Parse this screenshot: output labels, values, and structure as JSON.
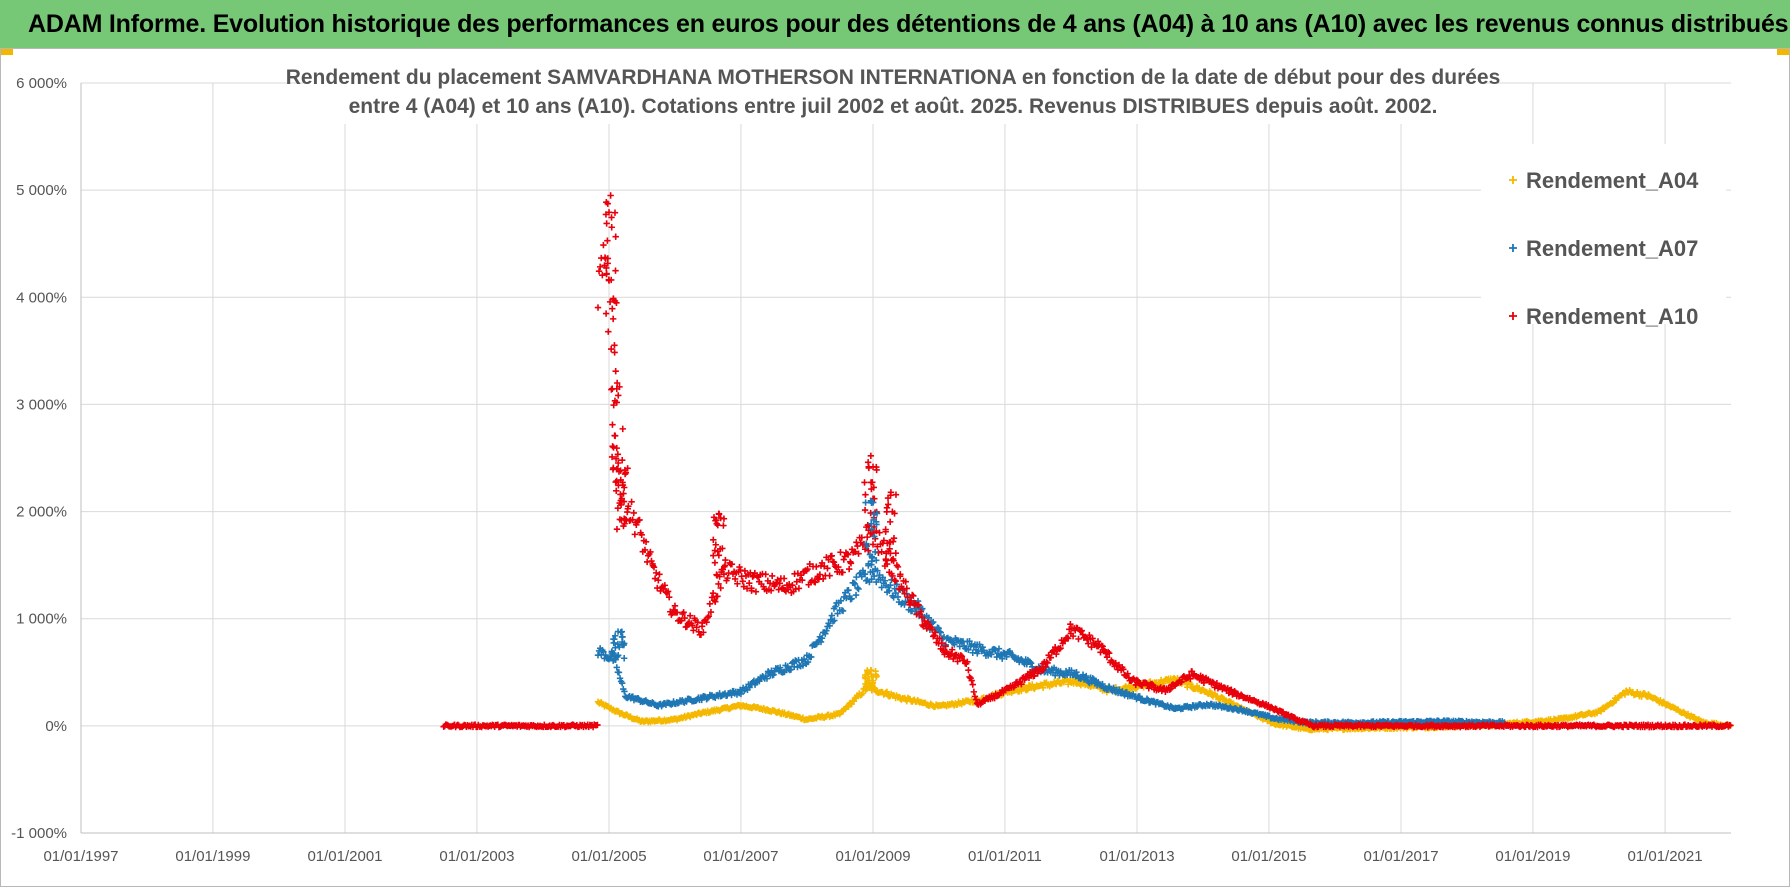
{
  "banner": {
    "title": "ADAM Informe. Evolution historique des performances en euros pour des détentions de 4 ans (A04) à 10 ans (A10) avec les revenus connus distribués"
  },
  "chart_data": {
    "type": "scatter",
    "title_lines": [
      "Rendement du placement SAMVARDHANA MOTHERSON INTERNATIONA en fonction de la date de début pour des durées",
      "entre 4 (A04) et 10 ans (A10). Cotations entre juil 2002 et août. 2025. Revenus DISTRIBUES depuis août. 2002."
    ],
    "xlabel": "",
    "ylabel": "",
    "x_ticks": [
      "01/01/1997",
      "01/01/1999",
      "01/01/2001",
      "01/01/2003",
      "01/01/2005",
      "01/01/2007",
      "01/01/2009",
      "01/01/2011",
      "01/01/2013",
      "01/01/2015",
      "01/01/2017",
      "01/01/2019",
      "01/01/2021"
    ],
    "xlim": [
      "1997-01-01",
      "2022-01-01"
    ],
    "y_ticks": [
      "-1 000%",
      "0%",
      "1 000%",
      "2 000%",
      "3 000%",
      "4 000%",
      "5 000%",
      "6 000%"
    ],
    "ylim": [
      -1000,
      6000
    ],
    "grid": true,
    "legend_position": "top-right",
    "series": [
      {
        "name": "Rendement_A04",
        "color": "#f5b800",
        "points": [
          [
            "2004-11-01",
            220
          ],
          [
            "2005-03-01",
            120
          ],
          [
            "2005-07-01",
            40
          ],
          [
            "2006-01-01",
            60
          ],
          [
            "2006-06-01",
            120
          ],
          [
            "2007-01-01",
            190
          ],
          [
            "2007-06-01",
            150
          ],
          [
            "2008-01-01",
            60
          ],
          [
            "2008-07-01",
            110
          ],
          [
            "2008-12-01",
            360
          ],
          [
            "2009-06-01",
            260
          ],
          [
            "2010-01-01",
            180
          ],
          [
            "2010-08-01",
            240
          ],
          [
            "2011-02-01",
            330
          ],
          [
            "2011-08-01",
            380
          ],
          [
            "2012-02-01",
            420
          ],
          [
            "2012-08-01",
            330
          ],
          [
            "2013-02-01",
            380
          ],
          [
            "2013-08-01",
            430
          ],
          [
            "2014-02-01",
            310
          ],
          [
            "2014-08-01",
            160
          ],
          [
            "2015-02-01",
            20
          ],
          [
            "2015-08-01",
            -30
          ],
          [
            "2016-06-01",
            -20
          ],
          [
            "2017-06-01",
            -10
          ],
          [
            "2018-06-01",
            10
          ],
          [
            "2019-06-01",
            60
          ],
          [
            "2020-01-01",
            130
          ],
          [
            "2020-06-01",
            320
          ],
          [
            "2020-10-01",
            280
          ],
          [
            "2021-02-01",
            180
          ],
          [
            "2021-08-01",
            30
          ],
          [
            "2022-01-01",
            0
          ]
        ]
      },
      {
        "name": "Rendement_A07",
        "color": "#1f77b4",
        "points": [
          [
            "2004-11-01",
            700
          ],
          [
            "2005-02-01",
            620
          ],
          [
            "2005-04-01",
            280
          ],
          [
            "2005-10-01",
            190
          ],
          [
            "2006-06-01",
            260
          ],
          [
            "2007-01-01",
            320
          ],
          [
            "2007-06-01",
            480
          ],
          [
            "2008-01-01",
            620
          ],
          [
            "2008-06-01",
            1050
          ],
          [
            "2008-10-01",
            1300
          ],
          [
            "2009-01-01",
            1450
          ],
          [
            "2009-05-01",
            1250
          ],
          [
            "2009-09-01",
            1100
          ],
          [
            "2010-02-01",
            800
          ],
          [
            "2010-08-01",
            720
          ],
          [
            "2011-02-01",
            650
          ],
          [
            "2011-08-01",
            520
          ],
          [
            "2012-02-01",
            480
          ],
          [
            "2012-08-01",
            350
          ],
          [
            "2013-02-01",
            250
          ],
          [
            "2013-08-01",
            160
          ],
          [
            "2014-02-01",
            200
          ],
          [
            "2014-08-01",
            150
          ],
          [
            "2015-02-01",
            70
          ],
          [
            "2015-08-01",
            30
          ],
          [
            "2016-08-01",
            30
          ],
          [
            "2017-08-01",
            40
          ],
          [
            "2018-08-01",
            30
          ]
        ]
      },
      {
        "name": "Rendement_A10",
        "color": "#e8000b",
        "points": [
          [
            "2002-07-01",
            0
          ],
          [
            "2003-06-01",
            0
          ],
          [
            "2004-10-31",
            0
          ],
          [
            "2004-11-01",
            4100
          ],
          [
            "2005-01-01",
            4300
          ],
          [
            "2005-02-01",
            3700
          ],
          [
            "2005-03-01",
            2150
          ],
          [
            "2005-06-01",
            1900
          ],
          [
            "2005-09-01",
            1450
          ],
          [
            "2006-01-01",
            1050
          ],
          [
            "2006-06-01",
            900
          ],
          [
            "2006-10-01",
            1450
          ],
          [
            "2007-03-01",
            1350
          ],
          [
            "2007-09-01",
            1300
          ],
          [
            "2008-03-01",
            1450
          ],
          [
            "2008-09-01",
            1550
          ],
          [
            "2009-01-01",
            1800
          ],
          [
            "2009-06-01",
            1350
          ],
          [
            "2009-10-01",
            1000
          ],
          [
            "2010-02-01",
            700
          ],
          [
            "2010-06-01",
            600
          ],
          [
            "2010-08-01",
            200
          ],
          [
            "2011-02-01",
            350
          ],
          [
            "2011-08-01",
            550
          ],
          [
            "2012-01-01",
            900
          ],
          [
            "2012-06-01",
            750
          ],
          [
            "2012-12-01",
            420
          ],
          [
            "2013-06-01",
            330
          ],
          [
            "2013-11-01",
            480
          ],
          [
            "2014-06-01",
            320
          ],
          [
            "2015-01-01",
            180
          ],
          [
            "2015-06-01",
            60
          ],
          [
            "2015-09-01",
            0
          ],
          [
            "2018-01-01",
            0
          ],
          [
            "2022-01-01",
            0
          ]
        ]
      }
    ],
    "spikes": [
      {
        "series": "Rendement_A10",
        "date": "2005-01-10",
        "value": 4950
      },
      {
        "series": "Rendement_A10",
        "date": "2005-02-15",
        "value": 3200
      },
      {
        "series": "Rendement_A10",
        "date": "2005-03-15",
        "value": 2480
      },
      {
        "series": "Rendement_A10",
        "date": "2006-09-01",
        "value": 1980
      },
      {
        "series": "Rendement_A10",
        "date": "2008-12-20",
        "value": 2520
      },
      {
        "series": "Rendement_A10",
        "date": "2009-04-10",
        "value": 2180
      },
      {
        "series": "Rendement_A07",
        "date": "2008-12-20",
        "value": 2100
      },
      {
        "series": "Rendement_A07",
        "date": "2005-02-20",
        "value": 880
      },
      {
        "series": "Rendement_A04",
        "date": "2008-12-20",
        "value": 520
      }
    ]
  }
}
